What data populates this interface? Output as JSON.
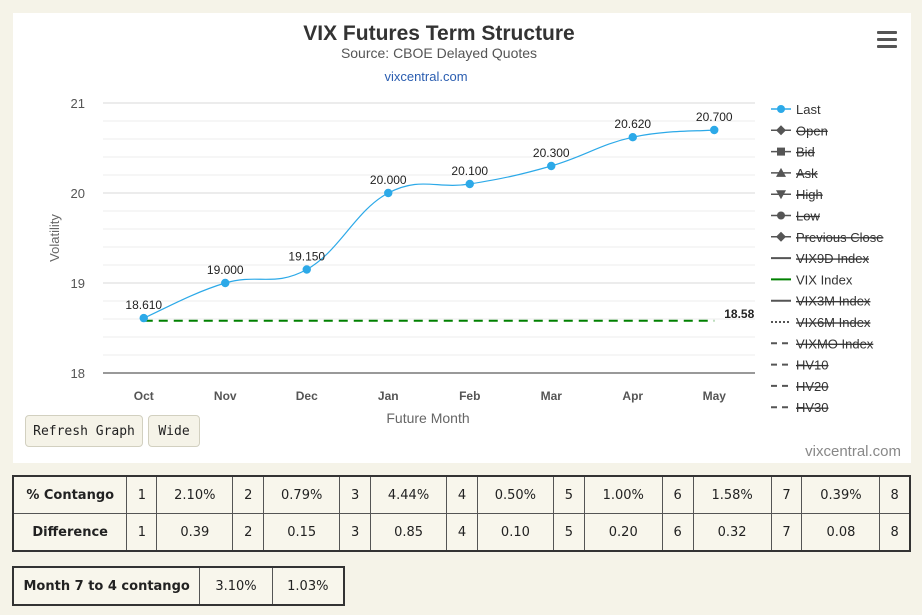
{
  "chart_data": {
    "type": "line",
    "title": "VIX Futures Term Structure",
    "subtitle": "Source: CBOE Delayed Quotes",
    "source_link": "vixcentral.com",
    "xlabel": "Future Month",
    "ylabel": "Volatility",
    "categories": [
      "Oct",
      "Nov",
      "Dec",
      "Jan",
      "Feb",
      "Mar",
      "Apr",
      "May"
    ],
    "ylim": [
      18,
      21
    ],
    "yticks": [
      "18",
      "19",
      "20",
      "21"
    ],
    "grid": true,
    "legend_position": "right",
    "series": [
      {
        "name": "Last",
        "color": "#2ca9e8",
        "values": [
          18.61,
          19.0,
          19.15,
          20.0,
          20.1,
          20.3,
          20.62,
          20.7
        ],
        "labels": [
          "18.610",
          "19.000",
          "19.150",
          "20.000",
          "20.100",
          "20.300",
          "20.620",
          "20.700"
        ]
      },
      {
        "name": "VIX Index",
        "color": "#008000",
        "style": "dashed",
        "value": 18.58,
        "label": "18.58"
      }
    ],
    "legend": [
      {
        "name": "Last",
        "symbol": "circle",
        "active": true
      },
      {
        "name": "Open",
        "symbol": "diamond",
        "active": false
      },
      {
        "name": "Bid",
        "symbol": "square",
        "active": false
      },
      {
        "name": "Ask",
        "symbol": "triangle",
        "active": false
      },
      {
        "name": "High",
        "symbol": "triangle-down",
        "active": false
      },
      {
        "name": "Low",
        "symbol": "circle",
        "active": false
      },
      {
        "name": "Previous Close",
        "symbol": "diamond",
        "active": false
      },
      {
        "name": "VIX9D Index",
        "symbol": "line",
        "active": false
      },
      {
        "name": "VIX Index",
        "symbol": "line-green",
        "active": true
      },
      {
        "name": "VIX3M Index",
        "symbol": "line",
        "active": false
      },
      {
        "name": "VIX6M Index",
        "symbol": "dotted",
        "active": false
      },
      {
        "name": "VIXMO Index",
        "symbol": "dashed",
        "active": false
      },
      {
        "name": "HV10",
        "symbol": "dashed",
        "active": false
      },
      {
        "name": "HV20",
        "symbol": "dashed",
        "active": false
      },
      {
        "name": "HV30",
        "symbol": "dashed",
        "active": false
      }
    ]
  },
  "buttons": {
    "refresh": "Refresh Graph",
    "wide": "Wide"
  },
  "credit": "vixcentral.com",
  "contango_table": {
    "row1_label": "% Contango",
    "row1": [
      {
        "n": "1",
        "v": "2.10%"
      },
      {
        "n": "2",
        "v": "0.79%"
      },
      {
        "n": "3",
        "v": "4.44%"
      },
      {
        "n": "4",
        "v": "0.50%"
      },
      {
        "n": "5",
        "v": "1.00%"
      },
      {
        "n": "6",
        "v": "1.58%"
      },
      {
        "n": "7",
        "v": "0.39%"
      }
    ],
    "row1_end": "8",
    "row2_label": "Difference",
    "row2": [
      {
        "n": "1",
        "v": "0.39"
      },
      {
        "n": "2",
        "v": "0.15"
      },
      {
        "n": "3",
        "v": "0.85"
      },
      {
        "n": "4",
        "v": "0.10"
      },
      {
        "n": "5",
        "v": "0.20"
      },
      {
        "n": "6",
        "v": "0.32"
      },
      {
        "n": "7",
        "v": "0.08"
      }
    ],
    "row2_end": "8"
  },
  "mini_table": {
    "label": "Month 7 to 4 contango",
    "v1": "3.10%",
    "v2": "1.03%"
  }
}
